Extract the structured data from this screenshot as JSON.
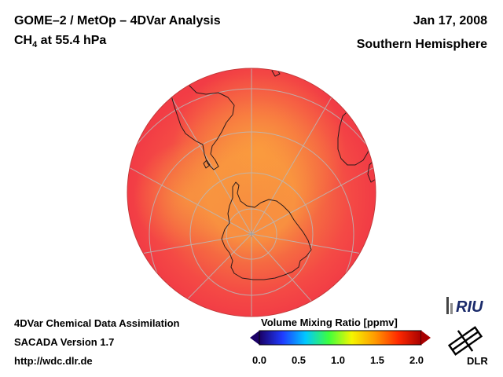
{
  "header": {
    "title_line1": "GOME–2 / MetOp – 4DVar Analysis",
    "species": "CH",
    "species_sub": "4",
    "pressure_text": " at 55.4 hPa",
    "date": "Jan 17, 2008",
    "region": "Southern Hemisphere"
  },
  "footer": {
    "line1": "4DVar Chemical Data Assimilation",
    "line2": "SACADA Version 1.7",
    "line3": "http://wdc.dlr.de"
  },
  "colorbar": {
    "label": "Volume Mixing Ratio [ppmv]",
    "ticks": [
      "0.0",
      "0.5",
      "1.0",
      "1.5",
      "2.0"
    ],
    "range": [
      0.0,
      2.0
    ],
    "colors": [
      "#1a0066",
      "#1f3bff",
      "#00c8ff",
      "#3dff3d",
      "#f5f500",
      "#ff9a00",
      "#ff2a00",
      "#a80000"
    ]
  },
  "logos": {
    "riu": "RIU",
    "dlr": "DLR"
  },
  "map": {
    "projection": "orthographic polar",
    "center": "South Pole",
    "field_high_color": "#f53a45",
    "field_low_color": "#f89a3e"
  }
}
